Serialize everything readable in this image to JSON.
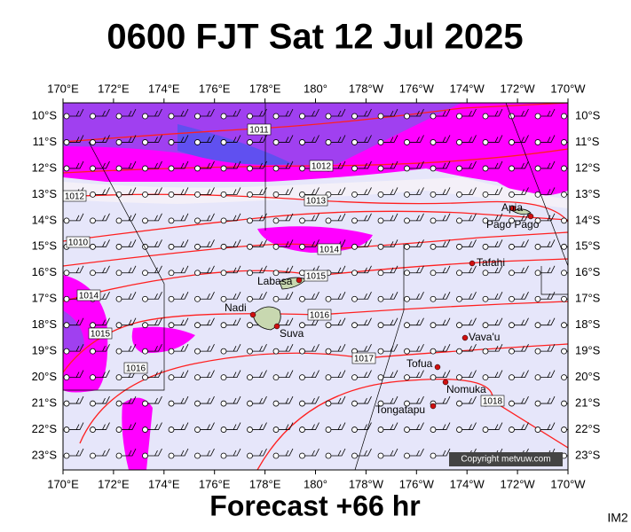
{
  "header": {
    "title": "0600 FJT Sat 12 Jul 2025"
  },
  "footer": {
    "forecast": "Forecast +66 hr",
    "code": "IM2"
  },
  "map": {
    "lon_labels": [
      "170°E",
      "172°E",
      "174°E",
      "176°E",
      "178°E",
      "180°",
      "178°W",
      "176°W",
      "174°W",
      "172°W",
      "170°W"
    ],
    "lat_labels": [
      "10°S",
      "11°S",
      "12°S",
      "13°S",
      "14°S",
      "15°S",
      "16°S",
      "17°S",
      "18°S",
      "19°S",
      "20°S",
      "21°S",
      "22°S",
      "23°S"
    ],
    "places": [
      "Apia",
      "Pago Pago",
      "Tafahi",
      "Labasa",
      "Nadi",
      "Suva",
      "Vava'u",
      "Tofua",
      "Nomuka",
      "Tongatapu"
    ],
    "isobar_labels": [
      "1011",
      "1012",
      "1013",
      "1014",
      "1015",
      "1016",
      "1017",
      "1018",
      "1012",
      "1010",
      "1014",
      "1015",
      "1016"
    ],
    "copyright": "Copyright metvuw.com"
  }
}
